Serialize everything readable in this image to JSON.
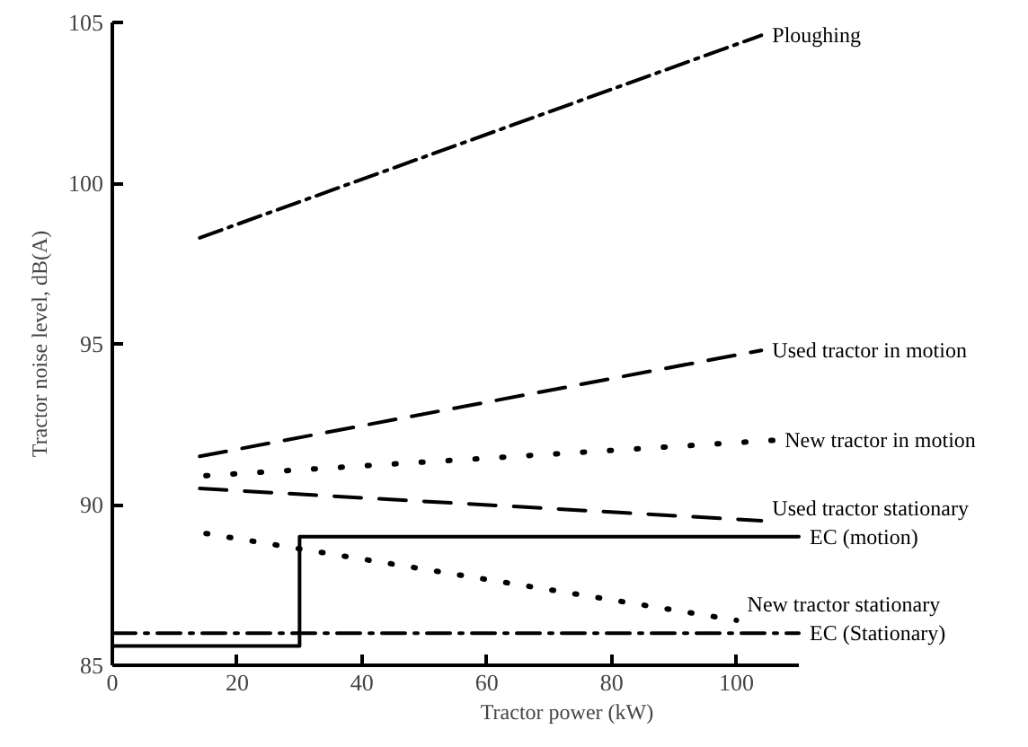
{
  "chart_data": {
    "type": "line",
    "xlabel": "Tractor power (kW)",
    "ylabel": "Tractor noise level, dB(A)",
    "xlim": [
      0,
      110
    ],
    "ylim": [
      85,
      105
    ],
    "xticks": [
      0,
      20,
      40,
      60,
      80,
      100
    ],
    "yticks": [
      85,
      90,
      95,
      100,
      105
    ],
    "series": [
      {
        "name": "Ploughing",
        "color": "#000000",
        "line_style": "dashdot",
        "x": [
          14,
          104
        ],
        "values": [
          98.3,
          104.6
        ]
      },
      {
        "name": "Used tractor in motion",
        "color": "#000000",
        "line_style": "dashed",
        "x": [
          14,
          104
        ],
        "values": [
          91.5,
          94.8
        ]
      },
      {
        "name": "New tractor in motion",
        "color": "#000000",
        "line_style": "dotted",
        "x": [
          15,
          106
        ],
        "values": [
          90.9,
          92.0
        ]
      },
      {
        "name": "Used tractor stationary",
        "color": "#000000",
        "line_style": "dashed",
        "x": [
          14,
          104
        ],
        "values": [
          90.5,
          89.5
        ]
      },
      {
        "name": "EC (motion)",
        "color": "#000000",
        "line_style": "solid",
        "x": [
          0,
          30,
          30,
          110
        ],
        "values": [
          85.6,
          85.6,
          89,
          89
        ]
      },
      {
        "name": "New tractor stationary",
        "color": "#000000",
        "line_style": "dotted",
        "x": [
          15,
          100
        ],
        "values": [
          89.1,
          86.4
        ]
      },
      {
        "name": "EC (Stationary)",
        "color": "#000000",
        "line_style": "dashdot",
        "x": [
          0,
          110
        ],
        "values": [
          86,
          86
        ]
      }
    ]
  }
}
